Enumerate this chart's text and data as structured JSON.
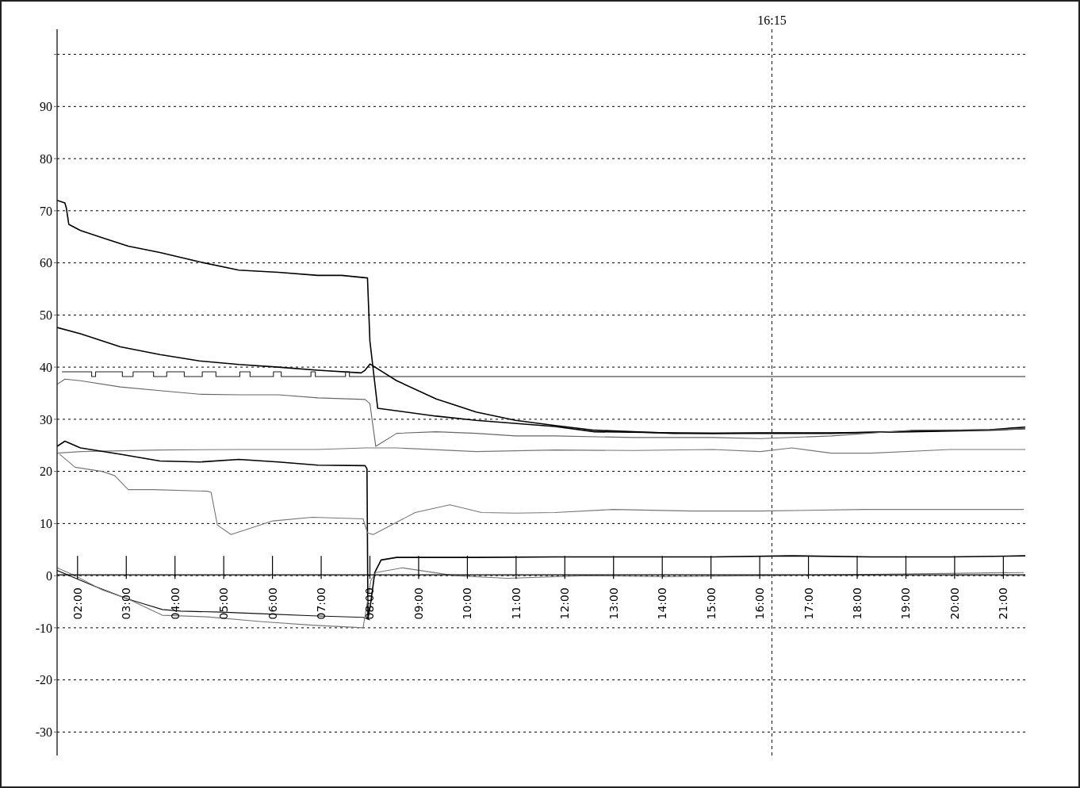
{
  "chart_data": {
    "type": "line",
    "xlim": [
      1.58,
      21.45
    ],
    "ylim": [
      -34.5,
      104.8
    ],
    "xticks": [
      {
        "value": 2,
        "label": "02:00"
      },
      {
        "value": 3,
        "label": "03:00"
      },
      {
        "value": 4,
        "label": "04:00"
      },
      {
        "value": 5,
        "label": "05:00"
      },
      {
        "value": 6,
        "label": "06:00"
      },
      {
        "value": 7,
        "label": "07:00"
      },
      {
        "value": 8,
        "label": "08:00"
      },
      {
        "value": 9,
        "label": "09:00"
      },
      {
        "value": 10,
        "label": "10:00"
      },
      {
        "value": 11,
        "label": "11:00"
      },
      {
        "value": 12,
        "label": "12:00"
      },
      {
        "value": 13,
        "label": "13:00"
      },
      {
        "value": 14,
        "label": "14:00"
      },
      {
        "value": 15,
        "label": "15:00"
      },
      {
        "value": 16,
        "label": "16:00"
      },
      {
        "value": 17,
        "label": "17:00"
      },
      {
        "value": 18,
        "label": "18:00"
      },
      {
        "value": 19,
        "label": "19:00"
      },
      {
        "value": 20,
        "label": "20:00"
      },
      {
        "value": 21,
        "label": "21:00"
      }
    ],
    "yticks": [
      -30,
      -20,
      -10,
      0,
      10,
      20,
      30,
      40,
      50,
      60,
      70,
      80,
      90,
      {
        "value": 100,
        "label": null
      }
    ],
    "grid": "y",
    "legend": false,
    "ref_lines": [
      {
        "axis": "x",
        "value": 16.25,
        "label": "16:15",
        "color": "#111111",
        "line_style": "dashed"
      }
    ],
    "series": [
      {
        "color": "#000000",
        "x": [
          1.58,
          1.74,
          1.77,
          1.82,
          2.06,
          2.55,
          3.04,
          3.69,
          4.5,
          5.31,
          6.12,
          6.93,
          7.42,
          7.95,
          8.0,
          8.16,
          9.36,
          10.18,
          11.8,
          12.61,
          14.23,
          15.04,
          16.01,
          17.47,
          19.1,
          20.72,
          21.45
        ],
        "values": [
          72.0,
          71.5,
          70.5,
          67.4,
          66.2,
          64.7,
          63.2,
          62.0,
          60.2,
          58.6,
          58.2,
          57.6,
          57.6,
          57.1,
          45,
          32.1,
          30.6,
          29.8,
          28.6,
          27.6,
          27.4,
          27.3,
          27.4,
          27.4,
          27.6,
          27.9,
          28.2
        ]
      },
      {
        "color": "#000000",
        "x": [
          1.58,
          2.06,
          2.88,
          3.69,
          4.5,
          5.31,
          6.12,
          6.93,
          7.82,
          7.9,
          8.0,
          8.55,
          9.36,
          10.18,
          10.99,
          11.8,
          12.61,
          14.23,
          16.01,
          17.47,
          19.1,
          20.72,
          21.45
        ],
        "values": [
          47.6,
          46.4,
          43.9,
          42.4,
          41.2,
          40.5,
          40.0,
          39.4,
          38.9,
          39.4,
          40.6,
          37.4,
          33.9,
          31.4,
          29.8,
          28.8,
          27.9,
          27.3,
          27.3,
          27.3,
          27.7,
          28.0,
          28.5
        ]
      },
      {
        "type": "step",
        "color": "#222222",
        "x": [
          1.68,
          2.29,
          2.37,
          2.92,
          3.14,
          3.56,
          3.83,
          4.19,
          4.56,
          4.84,
          5.33,
          5.54,
          6.02,
          6.18,
          6.79,
          6.88,
          7.5,
          7.58,
          21.45
        ],
        "values": [
          39.1,
          38.2,
          39.1,
          38.2,
          39.1,
          38.2,
          39.1,
          38.2,
          39.1,
          38.2,
          39.1,
          38.2,
          39.1,
          38.2,
          39.1,
          38.2,
          39.1,
          38.2,
          38.2
        ]
      },
      {
        "color": "#666666",
        "x": [
          1.58,
          1.74,
          2.06,
          2.88,
          3.69,
          4.5,
          5.31,
          6.12,
          6.93,
          7.9,
          8.0,
          8.12,
          8.55,
          9.36,
          10.18,
          10.99,
          11.8,
          13.42,
          15.04,
          16.01,
          17.47,
          19.1,
          20.72,
          21.45
        ],
        "values": [
          36.7,
          37.7,
          37.4,
          36.2,
          35.5,
          34.8,
          34.7,
          34.7,
          34.1,
          33.8,
          33.0,
          24.8,
          27.3,
          27.6,
          27.3,
          26.8,
          26.8,
          26.5,
          26.5,
          26.3,
          26.8,
          27.9,
          28.0,
          28.2
        ]
      },
      {
        "color": "#777777",
        "x": [
          1.58,
          2.06,
          3.69,
          5.31,
          6.93,
          7.9,
          8.55,
          10.18,
          11.8,
          13.42,
          15.04,
          16.01,
          16.66,
          17.47,
          18.29,
          19.91,
          21.45
        ],
        "values": [
          23.5,
          23.8,
          24.1,
          24.2,
          24.2,
          24.5,
          24.5,
          23.8,
          24.1,
          24.0,
          24.2,
          23.8,
          24.5,
          23.5,
          23.5,
          24.2,
          24.2
        ]
      },
      {
        "color": "#000000",
        "x": [
          1.58,
          1.74,
          2.06,
          2.88,
          3.69,
          4.5,
          5.31,
          6.12,
          6.93,
          7.9,
          7.94,
          7.96,
          8.02,
          8.1,
          8.23,
          8.55,
          10.18,
          11.8,
          13.42,
          15.04,
          16.66,
          18.29,
          19.91,
          21.45
        ],
        "values": [
          24.8,
          25.8,
          24.5,
          23.3,
          22.0,
          21.8,
          22.3,
          21.8,
          21.2,
          21.1,
          20.5,
          -8.3,
          -5,
          0.6,
          3.0,
          3.5,
          3.5,
          3.6,
          3.6,
          3.6,
          3.8,
          3.6,
          3.6,
          3.8
        ]
      },
      {
        "color": "#777777",
        "x": [
          1.63,
          1.95,
          2.5,
          2.76,
          3.04,
          3.57,
          4.66,
          4.74,
          4.87,
          5.15,
          6.01,
          6.82,
          7.86,
          7.95,
          8.07,
          8.93,
          9.64,
          10.29,
          10.99,
          11.8,
          12.98,
          14.6,
          16.01,
          18.17,
          21.42
        ],
        "values": [
          23.3,
          20.8,
          20.0,
          19.2,
          16.5,
          16.5,
          16.2,
          16.0,
          9.7,
          7.9,
          10.5,
          11.2,
          10.9,
          8.2,
          7.9,
          12.1,
          13.6,
          12.1,
          12.0,
          12.1,
          12.7,
          12.4,
          12.4,
          12.7,
          12.7
        ]
      },
      {
        "color": "#111111",
        "x": [
          1.58,
          2.34,
          3.04,
          3.74,
          4.12,
          4.94,
          5.75,
          6.82,
          7.86,
          8.0
        ],
        "values": [
          1.0,
          -2.0,
          -4.5,
          -6.5,
          -6.8,
          -7.0,
          -7.3,
          -7.7,
          -8.0,
          -8.5
        ]
      },
      {
        "color": "#777777",
        "x": [
          1.58,
          1.95,
          2.5,
          3.04,
          3.74,
          4.66,
          5.75,
          6.82,
          7.86,
          8.02,
          8.12,
          8.67,
          9.74,
          10.82,
          12.45,
          14.07,
          16.01,
          21.42
        ],
        "values": [
          1.5,
          0,
          -2.7,
          -4.5,
          -7.6,
          -7.9,
          -8.8,
          -9.5,
          -10,
          -0.9,
          0.6,
          1.5,
          0,
          -0.5,
          0,
          -0.2,
          0,
          0.6
        ]
      }
    ]
  }
}
